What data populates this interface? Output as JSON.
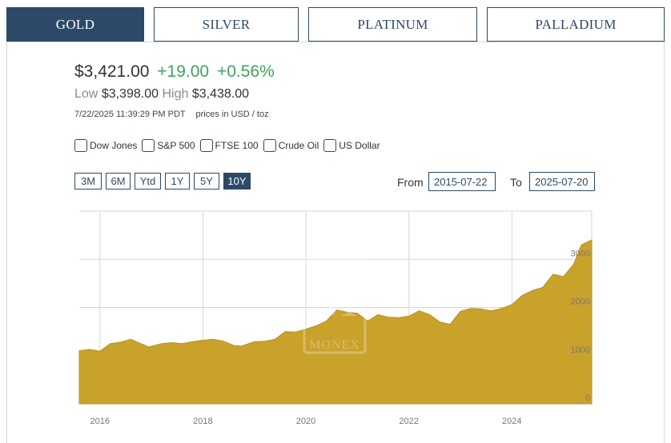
{
  "tabs": [
    {
      "label": "GOLD",
      "active": true
    },
    {
      "label": "SILVER",
      "active": false
    },
    {
      "label": "PLATINUM",
      "active": false
    },
    {
      "label": "PALLADIUM",
      "active": false
    }
  ],
  "quote": {
    "price": "$3,421.00",
    "change": "+19.00",
    "change_pct": "+0.56%",
    "low_label": "Low",
    "low": "$3,398.00",
    "high_label": "High",
    "high": "$3,438.00",
    "timestamp": "7/22/2025 11:39:29 PM PDT",
    "units": "prices in USD / toz"
  },
  "compare": [
    "Dow Jones",
    "S&P 500",
    "FTSE 100",
    "Crude Oil",
    "US Dollar"
  ],
  "ranges": [
    {
      "label": "3M",
      "active": false
    },
    {
      "label": "6M",
      "active": false
    },
    {
      "label": "Ytd",
      "active": false
    },
    {
      "label": "1Y",
      "active": false
    },
    {
      "label": "5Y",
      "active": false
    },
    {
      "label": "10Y",
      "active": true
    }
  ],
  "date_range": {
    "from_label": "From",
    "from": "2015-07-22",
    "to_label": "To",
    "to": "2025-07-20"
  },
  "watermark": "MONEX",
  "colors": {
    "tab_navy": "#2c4a67",
    "change_green": "#3ea55a",
    "area_gold": "#c9a22c"
  },
  "chart_data": {
    "type": "area",
    "x": [
      2015.6,
      2015.8,
      2016.0,
      2016.2,
      2016.4,
      2016.6,
      2016.75,
      2016.95,
      2017.2,
      2017.4,
      2017.6,
      2017.8,
      2018.0,
      2018.2,
      2018.4,
      2018.6,
      2018.75,
      2019.0,
      2019.2,
      2019.4,
      2019.6,
      2019.8,
      2020.0,
      2020.2,
      2020.4,
      2020.6,
      2020.8,
      2021.0,
      2021.2,
      2021.4,
      2021.6,
      2021.8,
      2022.0,
      2022.2,
      2022.4,
      2022.6,
      2022.8,
      2023.0,
      2023.2,
      2023.4,
      2023.6,
      2023.8,
      2024.0,
      2024.2,
      2024.4,
      2024.6,
      2024.8,
      2025.0,
      2025.2,
      2025.35,
      2025.55
    ],
    "y": [
      1100,
      1130,
      1090,
      1250,
      1280,
      1340,
      1270,
      1180,
      1250,
      1270,
      1250,
      1290,
      1320,
      1340,
      1300,
      1210,
      1200,
      1290,
      1300,
      1340,
      1500,
      1490,
      1550,
      1620,
      1720,
      1950,
      1900,
      1880,
      1720,
      1850,
      1800,
      1790,
      1820,
      1930,
      1850,
      1700,
      1650,
      1920,
      1980,
      1970,
      1930,
      1980,
      2060,
      2250,
      2350,
      2420,
      2690,
      2640,
      2900,
      3300,
      3400
    ],
    "xlim": [
      2015.6,
      2025.55
    ],
    "ylim": [
      0,
      4000
    ],
    "xticks": [
      2016,
      2018,
      2020,
      2022,
      2024
    ],
    "yticks": [
      0,
      1000,
      2000,
      3000
    ],
    "grid": true
  }
}
